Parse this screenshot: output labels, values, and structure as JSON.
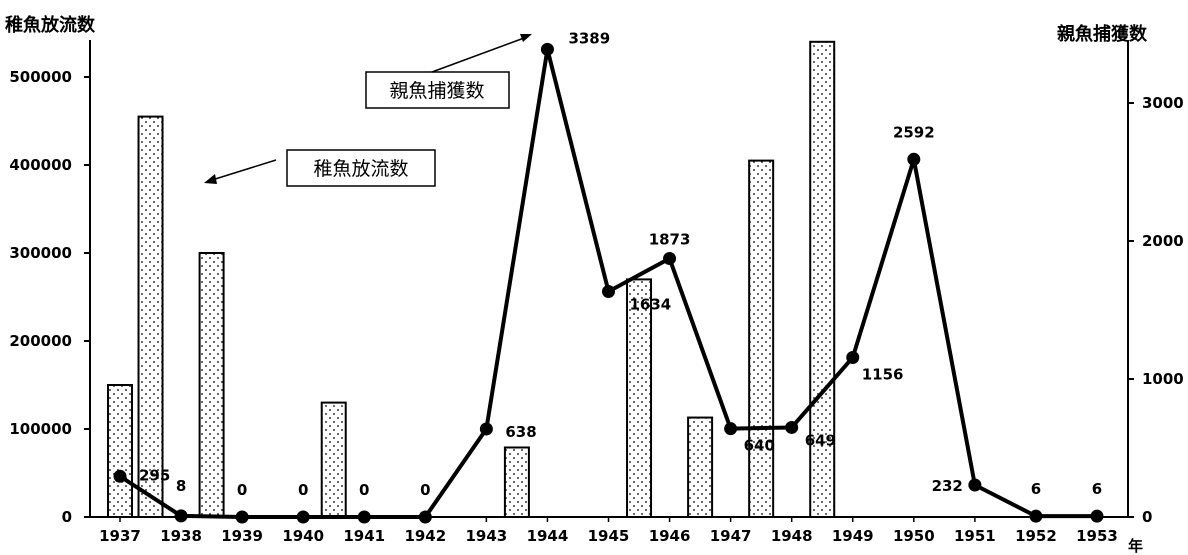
{
  "chart_data": {
    "type": "bar+line",
    "categories": [
      "1937",
      "1938",
      "1939",
      "1940",
      "1941",
      "1942",
      "1943",
      "1944",
      "1945",
      "1946",
      "1947",
      "1948",
      "1949",
      "1950",
      "1951",
      "1952",
      "1953"
    ],
    "series": [
      {
        "name": "稚魚放流数",
        "type": "bar",
        "axis": "left",
        "values": [
          150000,
          455000,
          300000,
          0,
          130000,
          0,
          0,
          79000,
          0,
          270000,
          113000,
          405000,
          540000,
          0,
          0,
          0,
          0
        ]
      },
      {
        "name": "親魚捕獲数",
        "type": "line",
        "axis": "right",
        "values": [
          295,
          8,
          0,
          0,
          0,
          0,
          638,
          3389,
          1634,
          1873,
          640,
          649,
          1156,
          2592,
          232,
          6,
          6
        ]
      }
    ],
    "ylabel_left": "稚魚放流数",
    "ylabel_right": "親魚捕獲数",
    "xlabel": "年",
    "ylim_left": [
      0,
      500000
    ],
    "ylim_right": [
      0,
      3000
    ],
    "yticks_left": [
      "0",
      "100000",
      "200000",
      "300000",
      "400000",
      "500000"
    ],
    "yticks_right": [
      "0",
      "1000",
      "2000",
      "3000"
    ],
    "annotations": [
      {
        "text": "親魚捕獲数",
        "target": "line"
      },
      {
        "text": "稚魚放流数",
        "target": "bars"
      }
    ],
    "grid": false
  }
}
